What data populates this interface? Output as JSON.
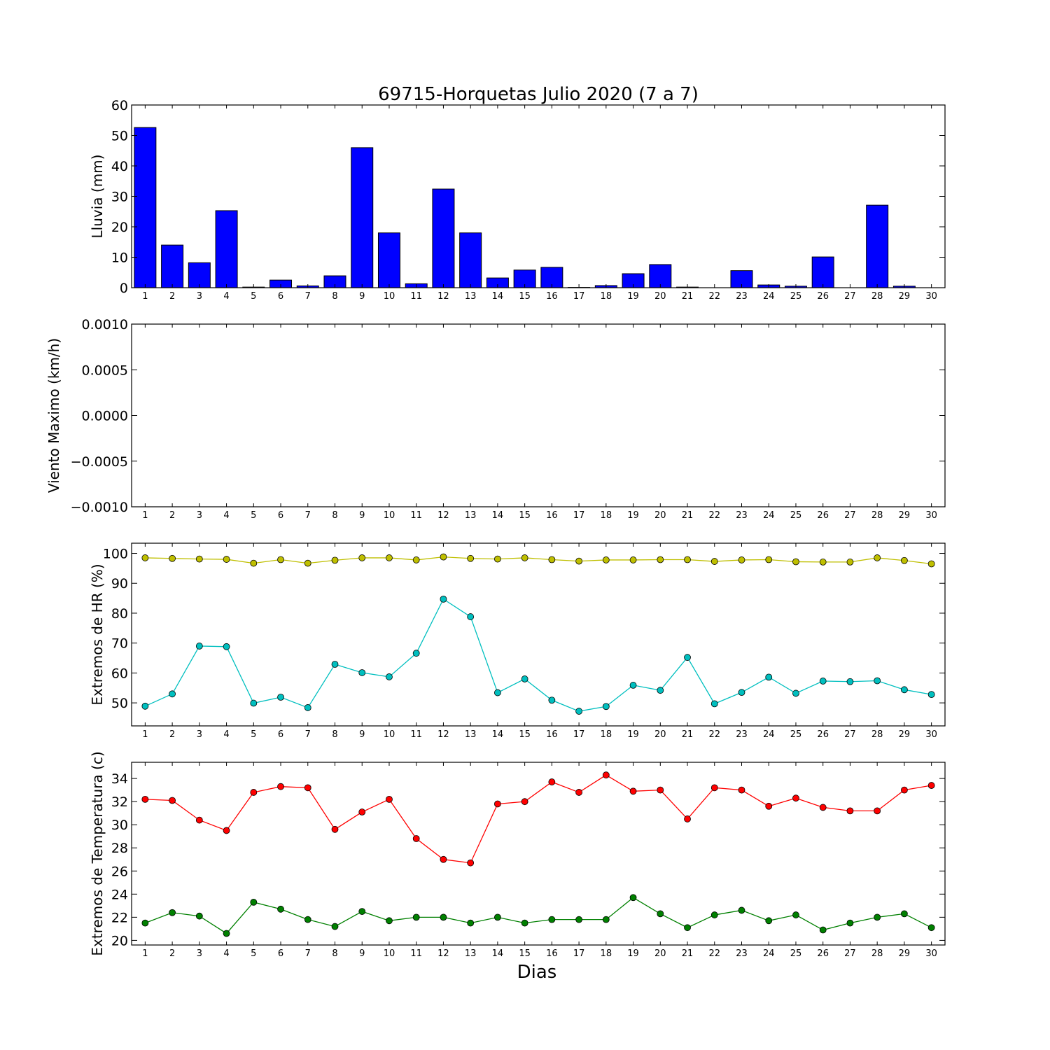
{
  "chart_data": [
    {
      "type": "bar",
      "title": "69715-Horquetas Julio 2020  (7 a 7)",
      "xlabel": "",
      "ylabel": "Lluvia (mm)",
      "categories": [
        "1",
        "2",
        "3",
        "4",
        "5",
        "6",
        "7",
        "8",
        "9",
        "10",
        "11",
        "12",
        "13",
        "14",
        "15",
        "16",
        "17",
        "18",
        "19",
        "20",
        "21",
        "22",
        "23",
        "24",
        "25",
        "26",
        "27",
        "28",
        "29",
        "30"
      ],
      "values": [
        52.6,
        14.0,
        8.2,
        25.3,
        0.2,
        2.5,
        0.6,
        3.9,
        46.0,
        18.0,
        1.3,
        32.4,
        18.0,
        3.2,
        5.8,
        6.7,
        0.1,
        0.7,
        4.6,
        7.6,
        0.2,
        0.0,
        5.6,
        0.9,
        0.5,
        10.1,
        0.0,
        27.1,
        0.5,
        0.0
      ],
      "color": "#0000ff",
      "ylim": [
        0,
        60
      ],
      "yticks": [
        "0",
        "10",
        "20",
        "30",
        "40",
        "50",
        "60"
      ],
      "grid": false
    },
    {
      "type": "line",
      "xlabel": "",
      "ylabel": "Viento Maximo (km/h)",
      "categories": [
        "1",
        "2",
        "3",
        "4",
        "5",
        "6",
        "7",
        "8",
        "9",
        "10",
        "11",
        "12",
        "13",
        "14",
        "15",
        "16",
        "17",
        "18",
        "19",
        "20",
        "21",
        "22",
        "23",
        "24",
        "25",
        "26",
        "27",
        "28",
        "29",
        "30"
      ],
      "series": [],
      "ylim": [
        -0.001,
        0.001
      ],
      "yticks": [
        "−0.0010",
        "−0.0005",
        "0.0000",
        "0.0005",
        "0.0010"
      ],
      "grid": false
    },
    {
      "type": "line",
      "xlabel": "",
      "ylabel": "Extremos de HR (%)",
      "categories": [
        "1",
        "2",
        "3",
        "4",
        "5",
        "6",
        "7",
        "8",
        "9",
        "10",
        "11",
        "12",
        "13",
        "14",
        "15",
        "16",
        "17",
        "18",
        "19",
        "20",
        "21",
        "22",
        "23",
        "24",
        "25",
        "26",
        "27",
        "28",
        "29",
        "30"
      ],
      "series": [
        {
          "color": "#bfbf00",
          "values": [
            98.5,
            98.3,
            98.1,
            98.0,
            96.7,
            97.9,
            96.7,
            97.7,
            98.5,
            98.5,
            97.8,
            98.8,
            98.3,
            98.1,
            98.5,
            97.9,
            97.4,
            97.8,
            97.8,
            97.9,
            97.9,
            97.3,
            97.8,
            97.9,
            97.2,
            97.1,
            97.1,
            98.5,
            97.6,
            96.5
          ]
        },
        {
          "color": "#00bfbf",
          "values": [
            48.9,
            53.0,
            69.0,
            68.8,
            49.9,
            51.9,
            48.4,
            62.9,
            60.1,
            58.7,
            66.6,
            84.7,
            78.8,
            53.4,
            58.0,
            50.9,
            47.2,
            48.8,
            55.9,
            54.2,
            65.2,
            49.7,
            53.5,
            58.6,
            53.2,
            57.3,
            57.1,
            57.4,
            54.4,
            52.8
          ]
        }
      ],
      "ylim": [
        42.3,
        103.4
      ],
      "yticks": [
        "50",
        "60",
        "70",
        "80",
        "90",
        "100"
      ],
      "grid": false
    },
    {
      "type": "line",
      "xlabel": "Dias",
      "ylabel": "Extremos de Temperatura (c)",
      "categories": [
        "1",
        "2",
        "3",
        "4",
        "5",
        "6",
        "7",
        "8",
        "9",
        "10",
        "11",
        "12",
        "13",
        "14",
        "15",
        "16",
        "17",
        "18",
        "19",
        "20",
        "21",
        "22",
        "23",
        "24",
        "25",
        "26",
        "27",
        "28",
        "29",
        "30"
      ],
      "series": [
        {
          "color": "#ff0000",
          "values": [
            32.2,
            32.1,
            30.4,
            29.5,
            32.8,
            33.3,
            33.2,
            29.6,
            31.1,
            32.2,
            28.8,
            27.0,
            26.7,
            31.8,
            32.0,
            33.7,
            32.8,
            34.3,
            32.9,
            33.0,
            30.5,
            33.2,
            33.0,
            31.6,
            32.3,
            31.5,
            31.2,
            31.2,
            33.0,
            33.4
          ]
        },
        {
          "color": "#008000",
          "values": [
            21.5,
            22.4,
            22.1,
            20.6,
            23.3,
            22.7,
            21.8,
            21.2,
            22.5,
            21.7,
            22.0,
            22.0,
            21.5,
            22.0,
            21.5,
            21.8,
            21.8,
            21.8,
            23.7,
            22.3,
            21.1,
            22.2,
            22.6,
            21.7,
            22.2,
            20.9,
            21.5,
            22.0,
            22.3,
            21.1
          ]
        }
      ],
      "ylim": [
        19.6,
        35.4
      ],
      "yticks": [
        "20",
        "22",
        "24",
        "26",
        "28",
        "30",
        "32",
        "34"
      ],
      "grid": false
    }
  ]
}
